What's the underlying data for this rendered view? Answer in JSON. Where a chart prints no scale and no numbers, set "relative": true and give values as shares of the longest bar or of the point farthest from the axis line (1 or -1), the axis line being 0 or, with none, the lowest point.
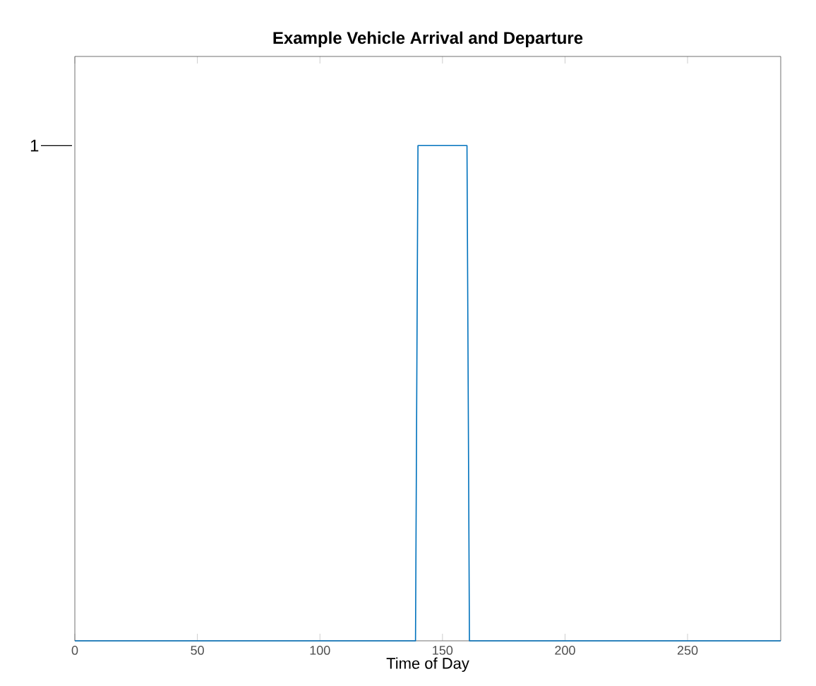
{
  "chart_data": {
    "type": "line",
    "title": "Example Vehicle Arrival and Departure",
    "xlabel": "Time of Day",
    "x": [
      0,
      139,
      140,
      160,
      161,
      288
    ],
    "series": [
      {
        "color": "#0072bd",
        "values": [
          0,
          0,
          1,
          1,
          0,
          0
        ]
      }
    ],
    "relative": true,
    "xlim": [
      0,
      288
    ],
    "xticks": [
      0,
      50,
      100,
      150,
      200,
      250
    ],
    "grid": false,
    "line_style": "solid",
    "marker": "none",
    "annotations": [
      "1"
    ]
  }
}
